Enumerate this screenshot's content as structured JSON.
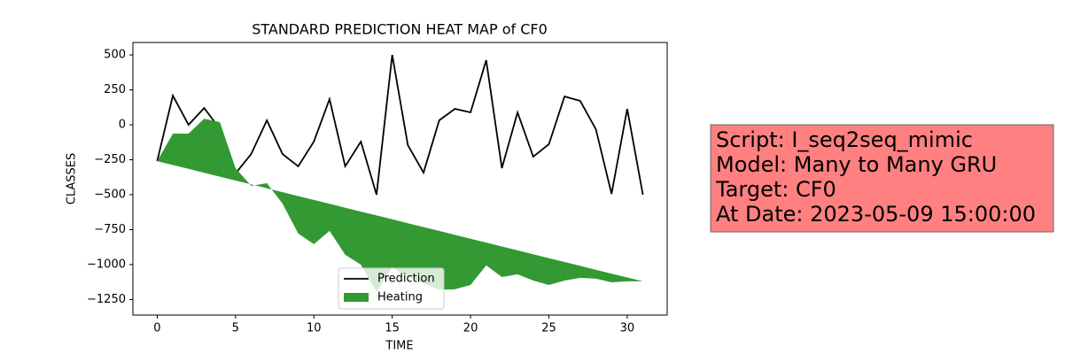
{
  "chart_data": {
    "type": "line_fill",
    "title": "STANDARD PREDICTION HEAT MAP of CF0",
    "xlabel": "TIME",
    "ylabel": "CLASSES",
    "x": [
      0,
      1,
      2,
      3,
      4,
      5,
      6,
      7,
      8,
      9,
      10,
      11,
      12,
      13,
      14,
      15,
      16,
      17,
      18,
      19,
      20,
      21,
      22,
      23,
      24,
      25,
      26,
      27,
      28,
      29,
      30,
      31
    ],
    "series": [
      {
        "name": "Prediction",
        "color": "#000000",
        "values": [
          -260,
          209,
          0,
          120,
          -30,
          -348,
          -209,
          32,
          -209,
          -297,
          -120,
          184,
          -297,
          -120,
          -500,
          500,
          -146,
          -342,
          32,
          114,
          89,
          462,
          -310,
          89,
          -228,
          -139,
          203,
          171,
          -32,
          -494,
          114,
          -500
        ]
      },
      {
        "name": "Heating",
        "color": "#339933",
        "values": [
          -260,
          -63,
          -63,
          44,
          19,
          -310,
          -437,
          -418,
          -563,
          -778,
          -854,
          -759,
          -930,
          -1000,
          -1196,
          -1019,
          -1089,
          -1133,
          -1180,
          -1177,
          -1146,
          -1006,
          -1089,
          -1070,
          -1114,
          -1146,
          -1114,
          -1095,
          -1101,
          -1127,
          -1120,
          -1120
        ],
        "base": [
          -260,
          -288,
          -315,
          -343,
          -371,
          -399,
          -426,
          -454,
          -482,
          -510,
          -537,
          -565,
          -593,
          -621,
          -648,
          -676,
          -704,
          -732,
          -759,
          -787,
          -815,
          -843,
          -870,
          -898,
          -926,
          -954,
          -981,
          -1009,
          -1037,
          -1065,
          -1092,
          -1120
        ]
      }
    ],
    "xlim": [
      -1.55,
      32.55
    ],
    "xticks": [
      0,
      5,
      10,
      15,
      20,
      25,
      30
    ],
    "ylim": [
      -1361,
      589
    ],
    "yticks": [
      {
        "value": -1250,
        "label": "−1250"
      },
      {
        "value": -1000,
        "label": "−1000"
      },
      {
        "value": -750,
        "label": "−750"
      },
      {
        "value": -500,
        "label": "−500"
      },
      {
        "value": -250,
        "label": "−250"
      },
      0,
      250,
      500
    ],
    "legend": "lower center",
    "annotation": [
      "Script: I_seq2seq_mimic",
      "Model: Many to Many GRU",
      "Target: CF0",
      "At Date: 2023-05-09 15:00:00"
    ]
  }
}
